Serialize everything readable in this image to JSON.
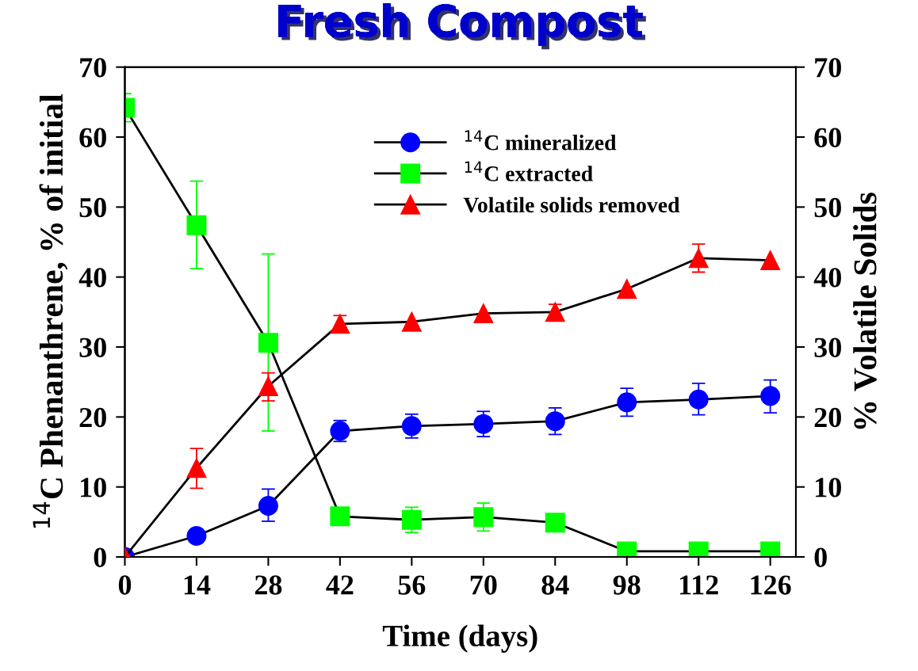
{
  "chart_data": {
    "type": "line",
    "title": "Fresh Compost",
    "xlabel": "Time (days)",
    "ylabel": "$^{14}$C Phenanthrene, % of initial",
    "y2label": "% Volatile Solids",
    "x": [
      0,
      14,
      28,
      42,
      56,
      70,
      84,
      98,
      112,
      126
    ],
    "series": [
      {
        "name": "$^{14}$C mineralized",
        "color": "#0000ff",
        "marker": "circle",
        "values": [
          0,
          3.0,
          7.3,
          18.0,
          18.7,
          19.0,
          19.4,
          22.1,
          22.5,
          23.0
        ],
        "errors": [
          null,
          null,
          [
            5.1,
            9.7
          ],
          [
            16.5,
            19.5
          ],
          [
            17.0,
            20.4
          ],
          [
            17.2,
            20.8
          ],
          [
            17.5,
            21.3
          ],
          [
            20.1,
            24.1
          ],
          [
            20.3,
            24.8
          ],
          [
            20.6,
            25.3
          ]
        ]
      },
      {
        "name": "$^{14}$C extracted",
        "color": "#00ff00",
        "marker": "square",
        "values": [
          64.2,
          47.4,
          30.6,
          5.8,
          5.3,
          5.7,
          4.9,
          0.8,
          0.8,
          0.8
        ],
        "errors": [
          [
            62.2,
            66.2
          ],
          [
            41.2,
            53.7
          ],
          [
            18.0,
            43.3
          ],
          [
            4.6,
            7.0
          ],
          [
            3.5,
            7.1
          ],
          [
            3.7,
            7.7
          ],
          null,
          null,
          null,
          null
        ]
      },
      {
        "name": "Volatile solids removed",
        "color": "#ff0000",
        "marker": "triangle",
        "axis": "y2",
        "values": [
          0,
          12.7,
          24.4,
          33.3,
          33.6,
          34.8,
          35.0,
          38.3,
          42.7,
          42.4
        ],
        "errors": [
          null,
          [
            9.8,
            15.5
          ],
          [
            22.3,
            26.3
          ],
          [
            32.1,
            34.5
          ],
          null,
          null,
          [
            33.9,
            36.1
          ],
          null,
          [
            40.7,
            44.7
          ],
          null
        ]
      }
    ],
    "xlim": [
      0,
      131
    ],
    "xticks": [
      0,
      14,
      28,
      42,
      56,
      70,
      84,
      98,
      112,
      126
    ],
    "ylim": [
      0,
      70
    ],
    "yticks": [
      0,
      10,
      20,
      30,
      40,
      50,
      60,
      70
    ],
    "y2lim": [
      0,
      70
    ],
    "y2ticks": [
      0,
      10,
      20,
      30,
      40,
      50,
      60,
      70
    ],
    "legend": "top",
    "grid": false,
    "line_style": "solid"
  }
}
